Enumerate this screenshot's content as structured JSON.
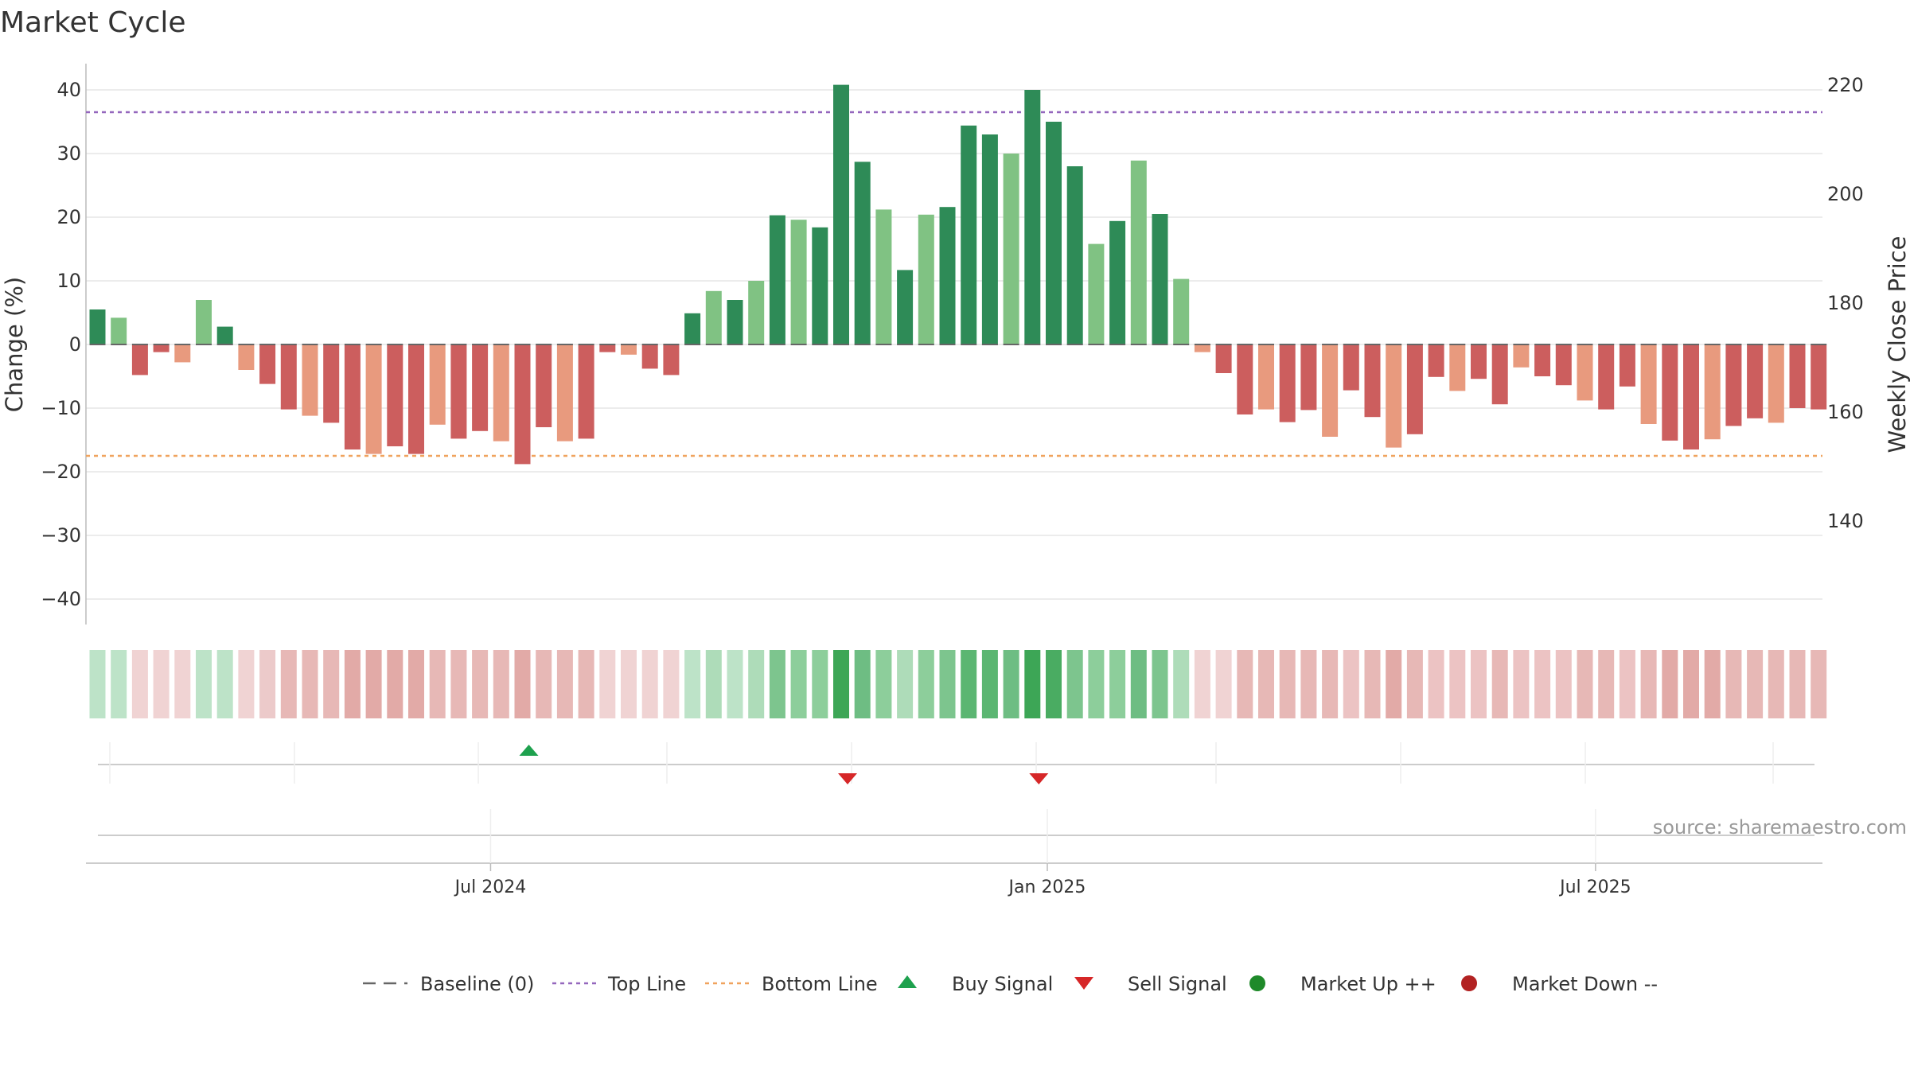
{
  "chart_data": {
    "type": "bar",
    "title": "Market Cycle",
    "ylabel": "Change (%)",
    "y2label": "Weekly Close Price",
    "ylim": [
      -44,
      44
    ],
    "y2lim": [
      125,
      223
    ],
    "yticks": [
      "40",
      "30",
      "20",
      "10",
      "0",
      "−10",
      "−20",
      "−30",
      "−40"
    ],
    "ytick_values": [
      40,
      30,
      20,
      10,
      0,
      -10,
      -20,
      -30,
      -40
    ],
    "y2ticks": [
      "220",
      "200",
      "180",
      "160",
      "140"
    ],
    "y2tick_values": [
      220,
      200,
      180,
      160,
      140
    ],
    "xticks": [
      "Jul 2024",
      "Jan 2025",
      "Jul 2025"
    ],
    "xtick_index": [
      18.5,
      44.7,
      70.5
    ],
    "top_line": 36.5,
    "bottom_line": -17.5,
    "values": [
      5.5,
      4.2,
      -4.8,
      -1.2,
      -2.8,
      7,
      2.8,
      -4,
      -6.2,
      -10.2,
      -11.2,
      -12.3,
      -16.5,
      -17.2,
      -16,
      -17.2,
      -12.6,
      -14.8,
      -13.6,
      -15.2,
      -18.8,
      -13,
      -15.2,
      -14.8,
      -1.2,
      -1.6,
      -3.8,
      -4.8,
      4.9,
      8.4,
      7,
      10,
      20.3,
      19.6,
      18.4,
      40.8,
      28.7,
      21.2,
      11.7,
      20.4,
      21.6,
      34.4,
      33,
      30,
      40,
      35,
      28,
      15.8,
      19.4,
      28.9,
      20.5,
      10.3,
      -1.2,
      -4.5,
      -11,
      -10.2,
      -12.2,
      -10.3,
      -14.5,
      -7.2,
      -11.4,
      -16.2,
      -14.1,
      -5.1,
      -7.3,
      -5.4,
      -9.4,
      -3.6,
      -5,
      -6.4,
      -8.8,
      -10.2,
      -6.6,
      -12.5,
      -15.1,
      -16.5,
      -14.9,
      -12.8,
      -11.6,
      -12.3,
      -10,
      -10.2
    ],
    "strength_colors": [
      "#bde3c8",
      "#bde3c8",
      "#f0d3d3",
      "#f0d3d3",
      "#f0d3d3",
      "#bde3c8",
      "#bde3c8",
      "#f0d3d3",
      "#eccaca",
      "#e7b8b6",
      "#e7b8b6",
      "#e7b8b6",
      "#e2aaa7",
      "#e2aaa7",
      "#e2aaa7",
      "#e2aaa7",
      "#e7b8b6",
      "#e7b8b6",
      "#e7b8b6",
      "#e7b8b6",
      "#e2aaa7",
      "#e7b8b6",
      "#e7b8b6",
      "#e7b8b6",
      "#f0d3d3",
      "#f0d3d3",
      "#f0d3d3",
      "#f0d3d3",
      "#bde3c8",
      "#aedcb9",
      "#bde3c8",
      "#aedcb9",
      "#7dc58e",
      "#8dce9b",
      "#8dce9b",
      "#3da656",
      "#6ebd83",
      "#8dce9b",
      "#aedcb9",
      "#8dce9b",
      "#7dc58e",
      "#5bb672",
      "#5bb672",
      "#6ebd83",
      "#3da656",
      "#4aac62",
      "#7dc58e",
      "#8dce9b",
      "#8dce9b",
      "#6ebd83",
      "#7dc58e",
      "#aedcb9",
      "#f0d3d3",
      "#f0d3d3",
      "#e7b8b6",
      "#e7b8b6",
      "#e7b8b6",
      "#e7b8b6",
      "#e7b8b6",
      "#ecc3c3",
      "#e7b8b6",
      "#e2aaa7",
      "#e7b8b6",
      "#ecc3c3",
      "#ecc3c3",
      "#ecc3c3",
      "#e7b8b6",
      "#ecc3c3",
      "#ecc3c3",
      "#ecc3c3",
      "#e7b8b6",
      "#e7b8b6",
      "#ecc3c3",
      "#e7b8b6",
      "#e2aaa7",
      "#e2aaa7",
      "#e2aaa7",
      "#e7b8b6",
      "#e7b8b6",
      "#e7b8b6",
      "#e7b8b6",
      "#e7b8b6"
    ],
    "buy_signals": [
      20.3
    ],
    "sell_signals": [
      35.3,
      44.3
    ],
    "colors": {
      "pos_strong": "#2e8b57",
      "pos_light": "#80c283",
      "neg_strong": "#cc5e5e",
      "neg_light": "#e89a7e",
      "top_line": "#9467bd",
      "bottom_line": "#f0a35e",
      "buy": "#1ea14e",
      "sell": "#d62728",
      "market_up": "#1f8a2a",
      "market_down": "#b22222",
      "baseline": "#666666"
    },
    "legend": [
      {
        "key": "baseline",
        "label": "Baseline (0)"
      },
      {
        "key": "top",
        "label": "Top Line"
      },
      {
        "key": "bottom",
        "label": "Bottom Line"
      },
      {
        "key": "buy",
        "label": "Buy Signal"
      },
      {
        "key": "sell",
        "label": "Sell Signal"
      },
      {
        "key": "up",
        "label": "Market Up ++"
      },
      {
        "key": "down",
        "label": "Market Down --"
      }
    ]
  },
  "source_text": "source: sharemaestro.com"
}
